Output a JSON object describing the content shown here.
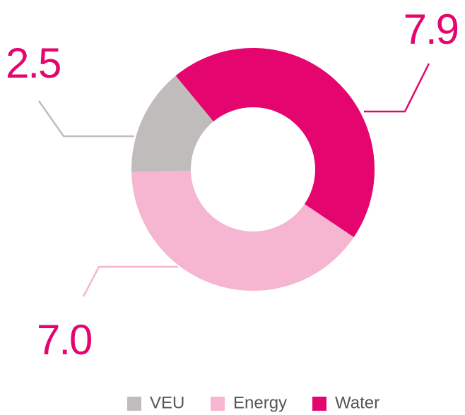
{
  "chart_data": {
    "type": "donut",
    "categories": [
      "VEU",
      "Energy",
      "Water"
    ],
    "values": [
      2.5,
      7.0,
      7.9
    ],
    "value_labels": [
      "2.5",
      "7.0",
      "7.9"
    ],
    "colors": [
      "#c0bcbc",
      "#f6b5d0",
      "#e5056e"
    ],
    "legend": "bottom"
  }
}
